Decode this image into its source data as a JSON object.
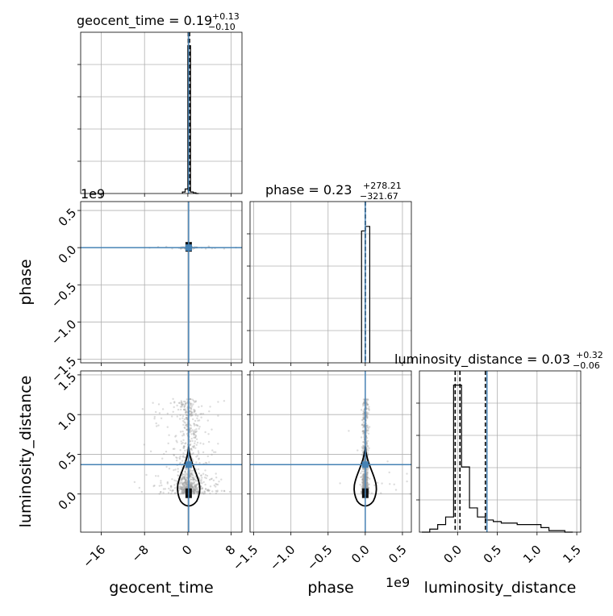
{
  "chart_data": {
    "type": "scatter",
    "kind": "corner plot",
    "parameters": [
      "geocent_time",
      "phase",
      "luminosity_distance"
    ],
    "titles": {
      "geocent_time": {
        "prefix": "geocent_time = 0.19",
        "plus": "+0.13",
        "minus": "−0.10",
        "median": 0.19,
        "err_plus": 0.13,
        "err_minus": 0.1
      },
      "phase": {
        "prefix": "phase = 0.23",
        "plus": "+278.21",
        "minus": "−321.67",
        "median": 0.23,
        "err_plus": 278.21,
        "err_minus": 321.67
      },
      "luminosity_distance": {
        "prefix": "luminosity_distance = 0.03",
        "plus": "+0.32",
        "minus": "−0.06",
        "median": 0.03,
        "err_plus": 0.32,
        "err_minus": 0.06
      }
    },
    "axes": {
      "geocent_time": {
        "label": "geocent_time",
        "range": [
          -19.8,
          10.0
        ],
        "ticks": [
          -16,
          -8,
          0,
          8
        ],
        "tick_labels": [
          "−16",
          "−8",
          "0",
          "8"
        ]
      },
      "phase": {
        "label": "phase",
        "offset_text": "1e9",
        "range": [
          -1.55,
          0.62
        ],
        "ticks": [
          -1.5,
          -1.0,
          -0.5,
          0.0,
          0.5
        ],
        "tick_labels": [
          "−1.5",
          "−1.0",
          "−0.5",
          "0.0",
          "0.5"
        ]
      },
      "luminosity_distance": {
        "label": "luminosity_distance",
        "offset_text": "1e9",
        "range": [
          -0.48,
          1.55
        ],
        "ticks": [
          0.0,
          0.5,
          1.0,
          1.5
        ],
        "tick_labels": [
          "0.0",
          "0.5",
          "1.0",
          "1.5"
        ]
      }
    },
    "truth": {
      "color": "#4682b4",
      "geocent_time": 0.15,
      "phase": 0.0,
      "luminosity_distance": 0.37
    },
    "histograms": {
      "geocent_time": {
        "edges": [
          -1.0,
          -0.5,
          0.0,
          0.5,
          1.0,
          1.5,
          2.0
        ],
        "counts": [
          0.01,
          0.03,
          0.975,
          0.01,
          0.005,
          0.0
        ],
        "quantile_lines": [
          0.09,
          0.19,
          0.32
        ]
      },
      "phase": {
        "edges": [
          -0.05,
          0.0,
          0.06
        ],
        "counts": [
          0.87,
          0.9
        ],
        "quantile_lines": [
          -0.0015,
          0.0,
          0.0015
        ]
      },
      "luminosity_distance": {
        "edges": [
          -0.45,
          -0.35,
          -0.25,
          -0.15,
          -0.05,
          0.05,
          0.15,
          0.25,
          0.35,
          0.45,
          0.55,
          0.65,
          0.75,
          0.85,
          0.95,
          1.05,
          1.15,
          1.25,
          1.35,
          1.45
        ],
        "counts": [
          0.0,
          0.02,
          0.05,
          0.1,
          0.97,
          0.43,
          0.16,
          0.1,
          0.08,
          0.07,
          0.06,
          0.06,
          0.05,
          0.05,
          0.05,
          0.03,
          0.01,
          0.01,
          0.0
        ],
        "quantile_lines": [
          -0.03,
          0.03,
          0.35
        ]
      }
    },
    "grid": true
  }
}
